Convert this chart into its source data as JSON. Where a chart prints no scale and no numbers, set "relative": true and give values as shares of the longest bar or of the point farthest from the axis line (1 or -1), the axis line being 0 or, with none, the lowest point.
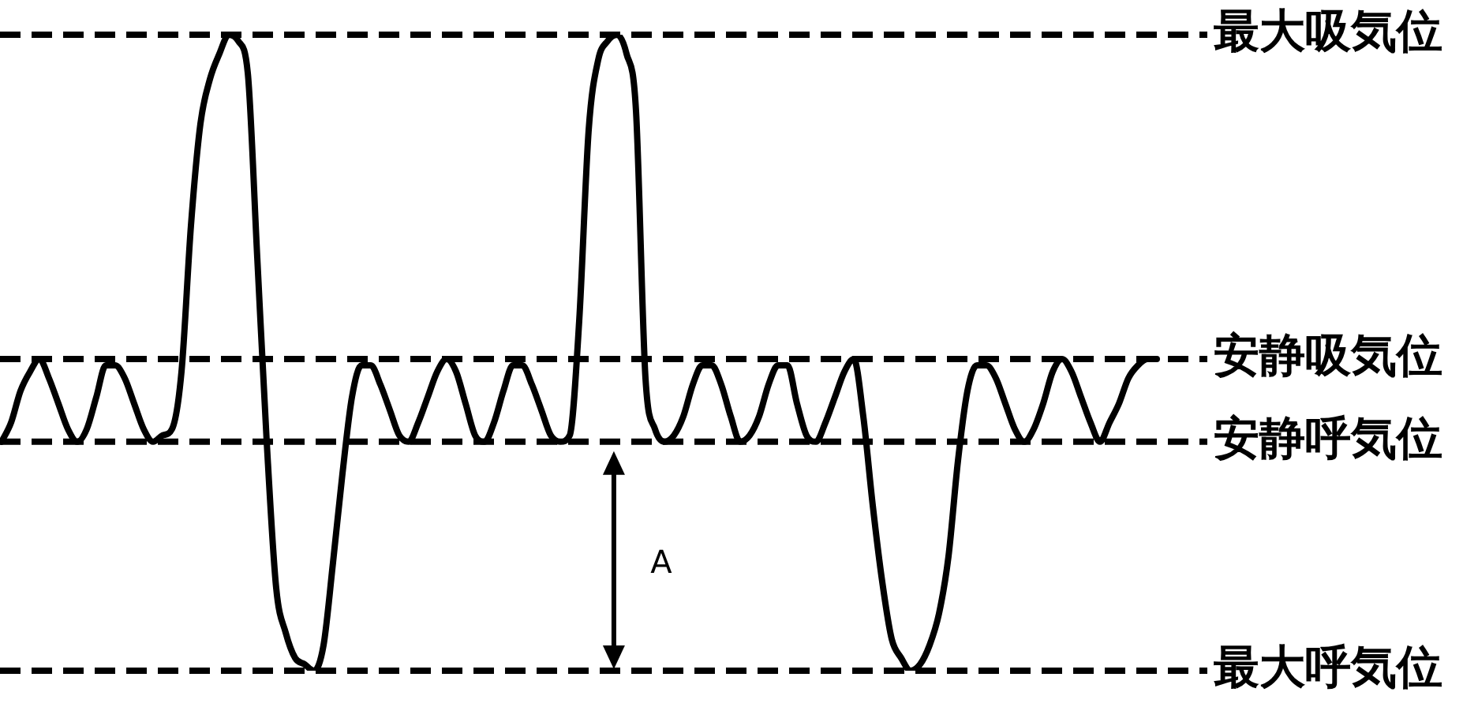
{
  "chart_data": {
    "type": "line",
    "relative": true,
    "color": "#000000",
    "marker": "none",
    "line_style": "solid",
    "categories": [
      null,
      null,
      null,
      null,
      null,
      null,
      null,
      null,
      null,
      null,
      null,
      null,
      null,
      null,
      null,
      null,
      null,
      null,
      null,
      null,
      null,
      null,
      null,
      null,
      null,
      null,
      null,
      null,
      null,
      null,
      null,
      null,
      null,
      null,
      null,
      null,
      null,
      null,
      null,
      null,
      null,
      null,
      null,
      null,
      null,
      null,
      null,
      null,
      null,
      null,
      null,
      null,
      null,
      null,
      null,
      null,
      null,
      null,
      null,
      null,
      null,
      null,
      null,
      null,
      null,
      null,
      null,
      null,
      null,
      null,
      null,
      null,
      null,
      null,
      null,
      null,
      null,
      null,
      null,
      null,
      null,
      null,
      null,
      null,
      null,
      null,
      null,
      null,
      null,
      null,
      null,
      null,
      null,
      null,
      null,
      null,
      null,
      null,
      null,
      null,
      null,
      null,
      null,
      null,
      null,
      null,
      null,
      null,
      null,
      null,
      null,
      null,
      null,
      null,
      null,
      null,
      null,
      null,
      null,
      null,
      null,
      null,
      null
    ],
    "values": [
      0.36,
      0.39,
      0.44,
      0.47,
      0.49,
      0.46,
      0.42,
      0.38,
      0.36,
      0.38,
      0.43,
      0.48,
      0.48,
      0.46,
      0.42,
      0.38,
      0.36,
      0.37,
      0.38,
      0.47,
      0.7,
      0.86,
      0.93,
      0.97,
      1.0,
      0.99,
      0.94,
      0.65,
      0.36,
      0.13,
      0.06,
      0.02,
      0.01,
      0.0,
      0.04,
      0.17,
      0.31,
      0.43,
      0.48,
      0.48,
      0.45,
      0.41,
      0.37,
      0.36,
      0.39,
      0.43,
      0.47,
      0.49,
      0.47,
      0.42,
      0.37,
      0.36,
      0.39,
      0.44,
      0.48,
      0.48,
      0.45,
      0.41,
      0.37,
      0.36,
      0.37,
      0.55,
      0.85,
      0.96,
      0.99,
      1.0,
      0.97,
      0.88,
      0.46,
      0.38,
      0.36,
      0.37,
      0.4,
      0.45,
      0.48,
      0.48,
      0.45,
      0.4,
      0.36,
      0.37,
      0.4,
      0.45,
      0.48,
      0.48,
      0.42,
      0.37,
      0.36,
      0.39,
      0.43,
      0.47,
      0.49,
      0.4,
      0.26,
      0.14,
      0.05,
      0.02,
      0.0,
      0.01,
      0.04,
      0.09,
      0.18,
      0.33,
      0.44,
      0.48,
      0.48,
      0.46,
      0.42,
      0.38,
      0.36,
      0.38,
      0.42,
      0.47,
      0.49,
      0.47,
      0.43,
      0.39,
      0.36,
      0.39,
      0.42,
      0.46,
      0.48,
      0.49,
      0.49
    ],
    "ref_lines": [
      {
        "axis": "y",
        "value": 1,
        "label": "最大吸気位",
        "color": "#000000",
        "line_style": "dashed"
      },
      {
        "axis": "y",
        "value": 0.49,
        "label": "安静吸気位",
        "color": "#000000",
        "line_style": "dashed"
      },
      {
        "axis": "y",
        "value": 0.36,
        "label": "安静呼気位",
        "color": "#000000",
        "line_style": "dashed"
      },
      {
        "axis": "y",
        "value": 0,
        "label": "最大呼気位",
        "color": "#000000",
        "line_style": "dashed"
      }
    ],
    "annotations": [
      "A"
    ]
  }
}
